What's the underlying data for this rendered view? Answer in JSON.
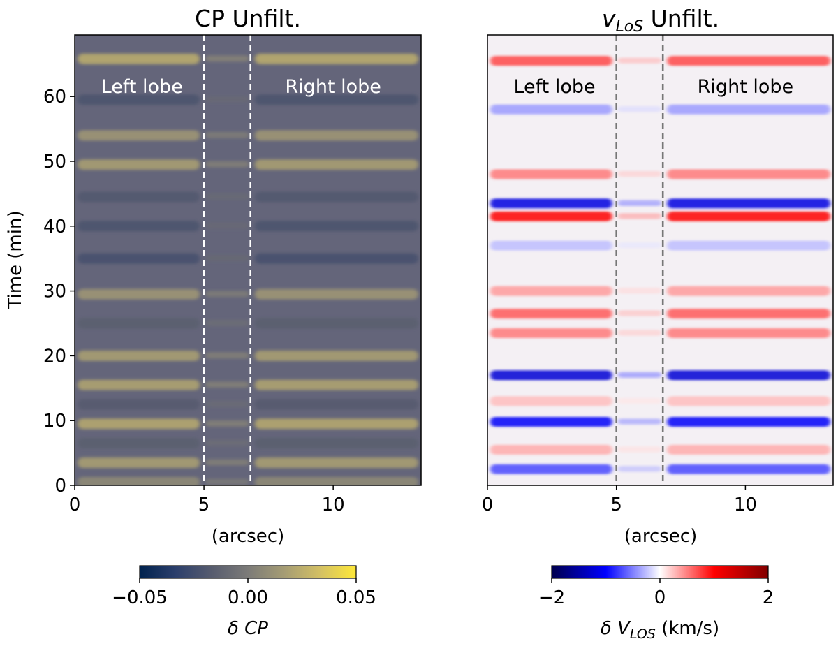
{
  "chart_data": [
    {
      "type": "heatmap",
      "title": "CP Unfilt.",
      "xlabel": "(arcsec)",
      "ylabel": "Time (min)",
      "xlim": [
        0,
        13.4
      ],
      "ylim": [
        0,
        69.5
      ],
      "xticks": [
        0,
        5,
        10
      ],
      "xtick_labels": [
        "0",
        "5",
        "10"
      ],
      "yticks": [
        0,
        10,
        20,
        30,
        40,
        50,
        60
      ],
      "ytick_labels": [
        "0",
        "10",
        "20",
        "30",
        "40",
        "50",
        "60"
      ],
      "boundaries_x": [
        5.0,
        6.8
      ],
      "boundary_style": "white-dashed",
      "region_labels": [
        {
          "text": "Left lobe",
          "x": 2.6,
          "y": 61.5
        },
        {
          "text": "Right lobe",
          "x": 10.0,
          "y": 61.5
        }
      ],
      "colormap": "cividis",
      "colorbar": {
        "label": "δ CP",
        "range": [
          -0.05,
          0.05
        ],
        "ticks": [
          -0.05,
          0.0,
          0.05
        ],
        "tick_labels": [
          "−0.05",
          "0.00",
          "0.05"
        ],
        "stops": [
          "#00224e",
          "#2c3f6c",
          "#575c6e",
          "#7c7b78",
          "#a59c74",
          "#d3c064",
          "#fee838"
        ]
      },
      "band_profile": [
        {
          "t": 65.8,
          "v": 0.6
        },
        {
          "t": 59.5,
          "v": -0.5
        },
        {
          "t": 54.0,
          "v": 0.35
        },
        {
          "t": 49.5,
          "v": 0.45
        },
        {
          "t": 44.5,
          "v": -0.45
        },
        {
          "t": 40.0,
          "v": -0.5
        },
        {
          "t": 35.0,
          "v": -0.55
        },
        {
          "t": 29.5,
          "v": 0.35
        },
        {
          "t": 25.0,
          "v": -0.35
        },
        {
          "t": 20.0,
          "v": 0.45
        },
        {
          "t": 15.5,
          "v": 0.5
        },
        {
          "t": 12.5,
          "v": -0.4
        },
        {
          "t": 9.5,
          "v": 0.55
        },
        {
          "t": 6.5,
          "v": -0.35
        },
        {
          "t": 3.5,
          "v": 0.45
        },
        {
          "t": 0.5,
          "v": 0.2
        }
      ]
    },
    {
      "type": "heatmap",
      "title_main": "v",
      "title_sub": "LoS",
      "title_rest": " Unfilt.",
      "xlabel": "(arcsec)",
      "xlim": [
        0,
        13.4
      ],
      "ylim": [
        0,
        69.5
      ],
      "xticks": [
        0,
        5,
        10
      ],
      "xtick_labels": [
        "0",
        "5",
        "10"
      ],
      "boundaries_x": [
        5.0,
        6.8
      ],
      "boundary_style": "gray-dashed",
      "region_labels": [
        {
          "text": "Left lobe",
          "x": 2.6,
          "y": 61.5
        },
        {
          "text": "Right lobe",
          "x": 10.0,
          "y": 61.5
        }
      ],
      "colormap": "seismic",
      "colorbar": {
        "label_prefix": "δ ",
        "label_var": "V",
        "label_sub": "LOS",
        "label_units": " (km/s)",
        "range": [
          -2,
          2
        ],
        "ticks": [
          -2,
          0,
          2
        ],
        "tick_labels": [
          "−2",
          "0",
          "2"
        ],
        "stops": [
          "#00004c",
          "#0000ff",
          "#ffffff",
          "#ff0000",
          "#800000"
        ]
      },
      "band_profile": [
        {
          "t": 65.5,
          "v": 0.55
        },
        {
          "t": 58.0,
          "v": -0.3
        },
        {
          "t": 48.0,
          "v": 0.4
        },
        {
          "t": 43.5,
          "v": -0.9
        },
        {
          "t": 41.5,
          "v": 0.75
        },
        {
          "t": 37.0,
          "v": -0.2
        },
        {
          "t": 30.0,
          "v": 0.3
        },
        {
          "t": 26.5,
          "v": 0.5
        },
        {
          "t": 23.5,
          "v": 0.4
        },
        {
          "t": 17.0,
          "v": -0.95
        },
        {
          "t": 13.0,
          "v": 0.2
        },
        {
          "t": 9.8,
          "v": -0.8
        },
        {
          "t": 5.5,
          "v": 0.25
        },
        {
          "t": 2.5,
          "v": -0.55
        }
      ]
    }
  ]
}
